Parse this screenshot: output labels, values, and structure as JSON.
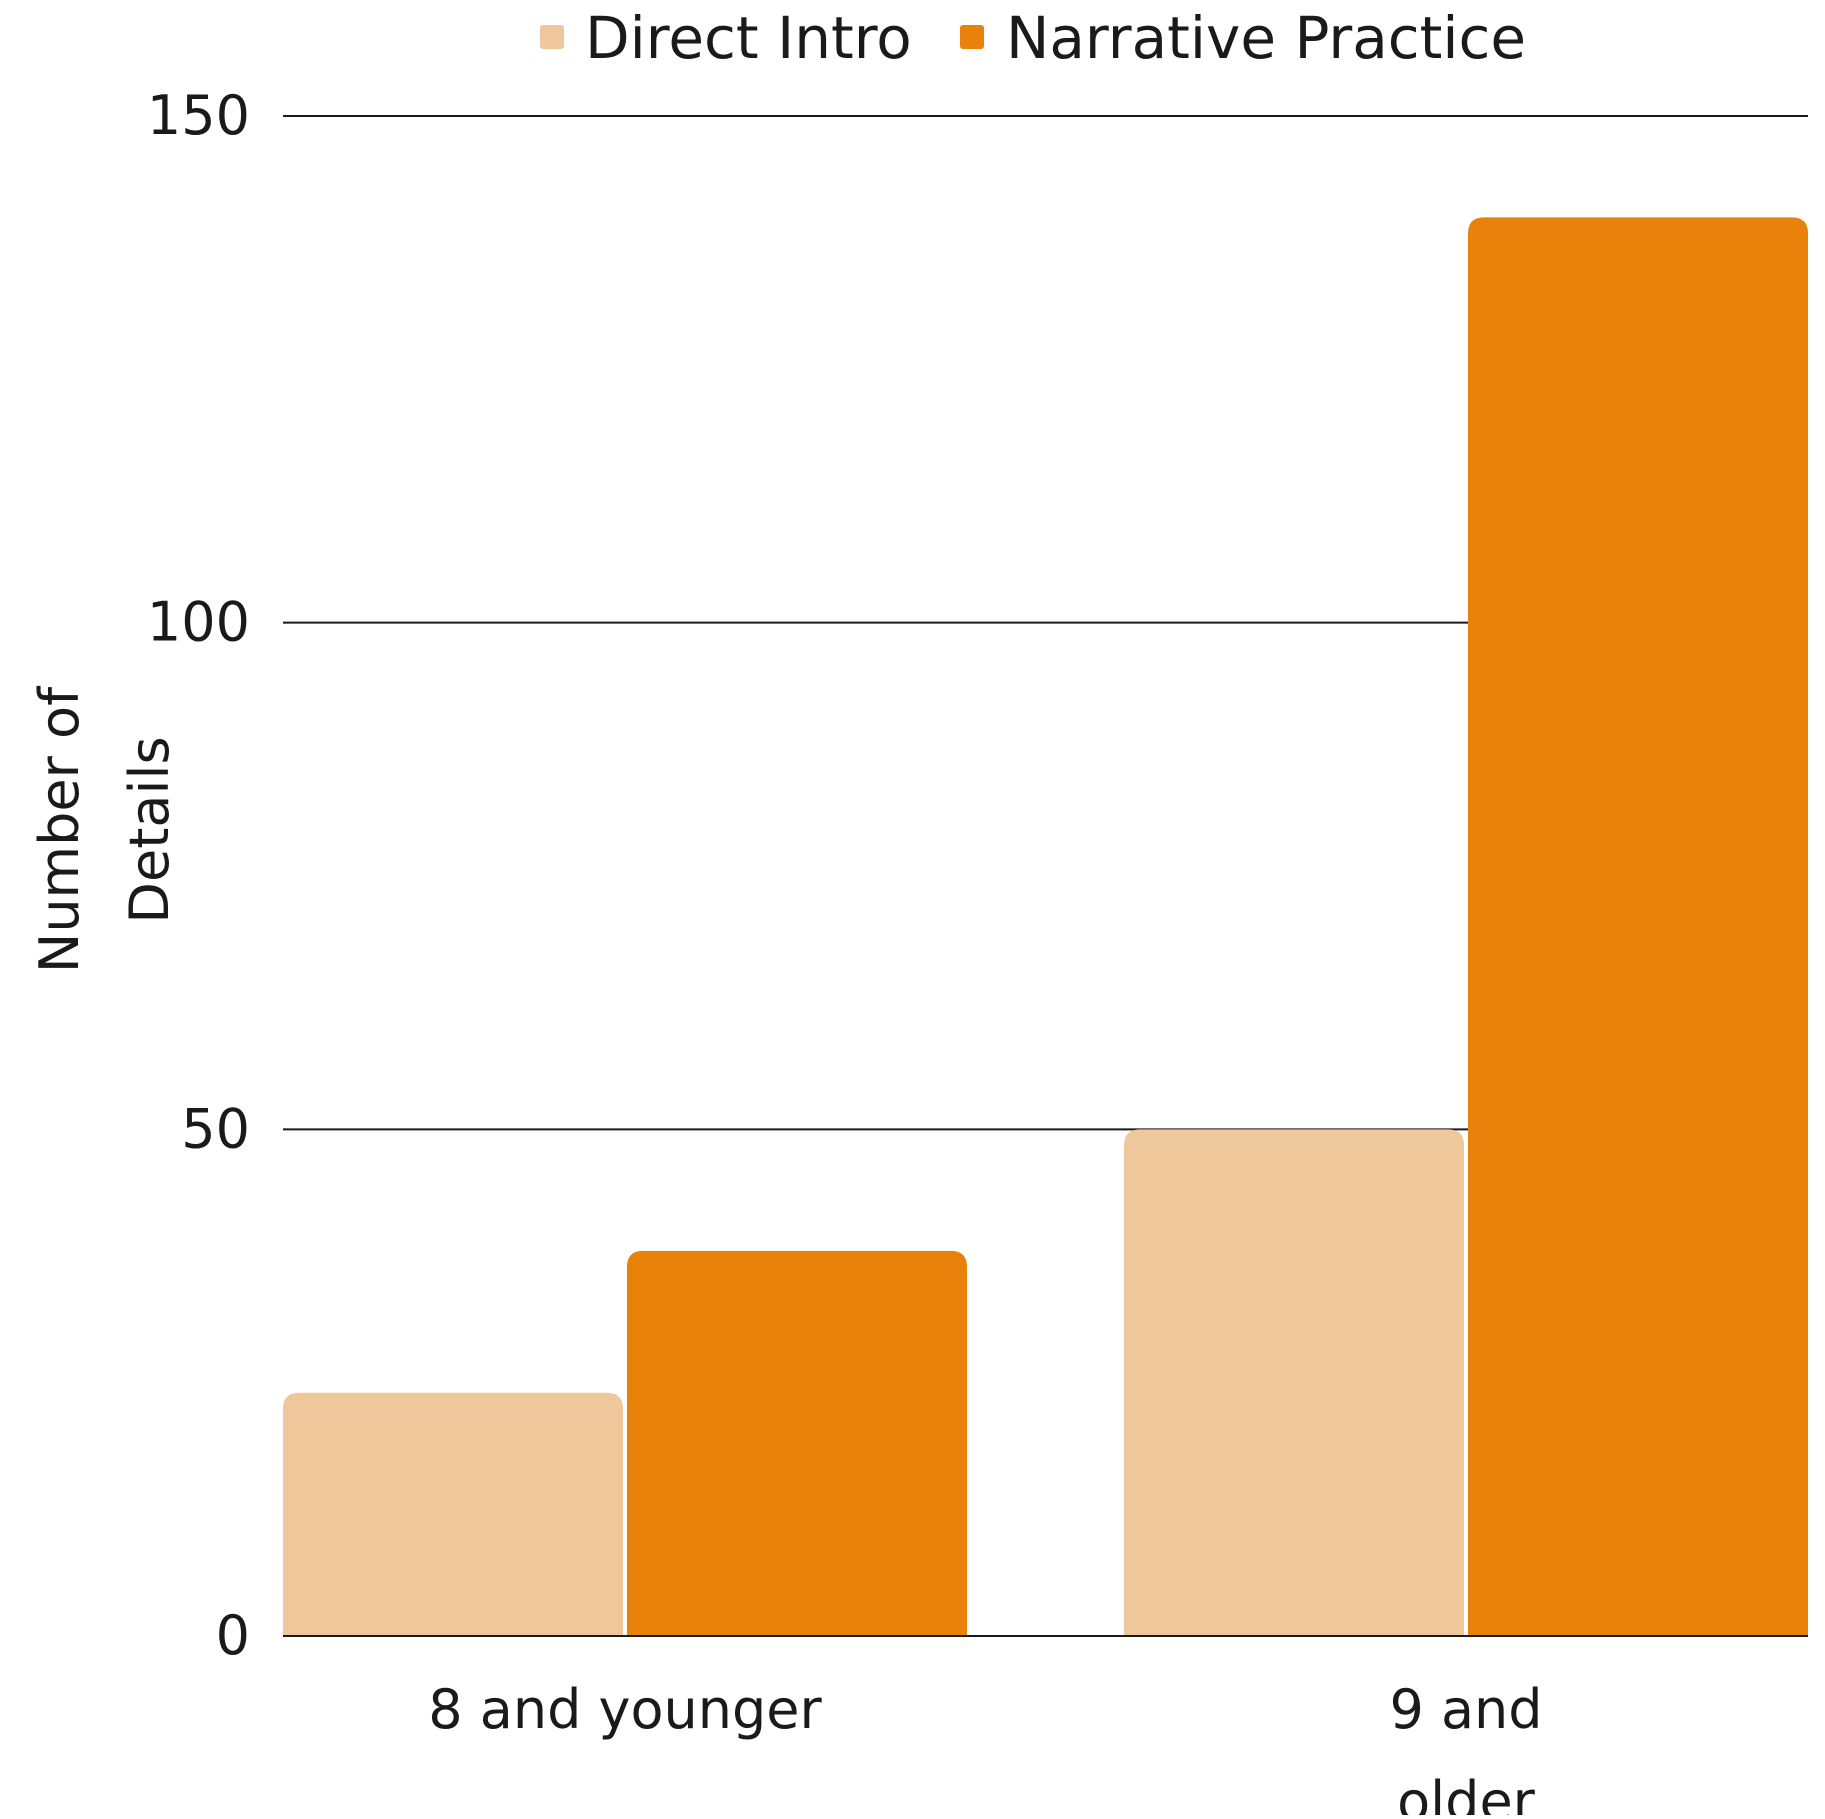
{
  "chart_data": {
    "type": "bar",
    "title": "",
    "xlabel": "",
    "ylabel": [
      "Number of",
      "Details"
    ],
    "ylim": [
      0,
      150
    ],
    "yticks": [
      0,
      50,
      100,
      150
    ],
    "grid": true,
    "legend_position": "top-center",
    "categories": [
      [
        "8 and younger"
      ],
      [
        "9 and",
        "older"
      ]
    ],
    "series": [
      {
        "name": "Direct Intro",
        "color": "#EEC89B",
        "values": [
          24,
          50
        ]
      },
      {
        "name": "Narrative Practice",
        "color": "#E8820A",
        "values": [
          38,
          140
        ]
      }
    ]
  }
}
